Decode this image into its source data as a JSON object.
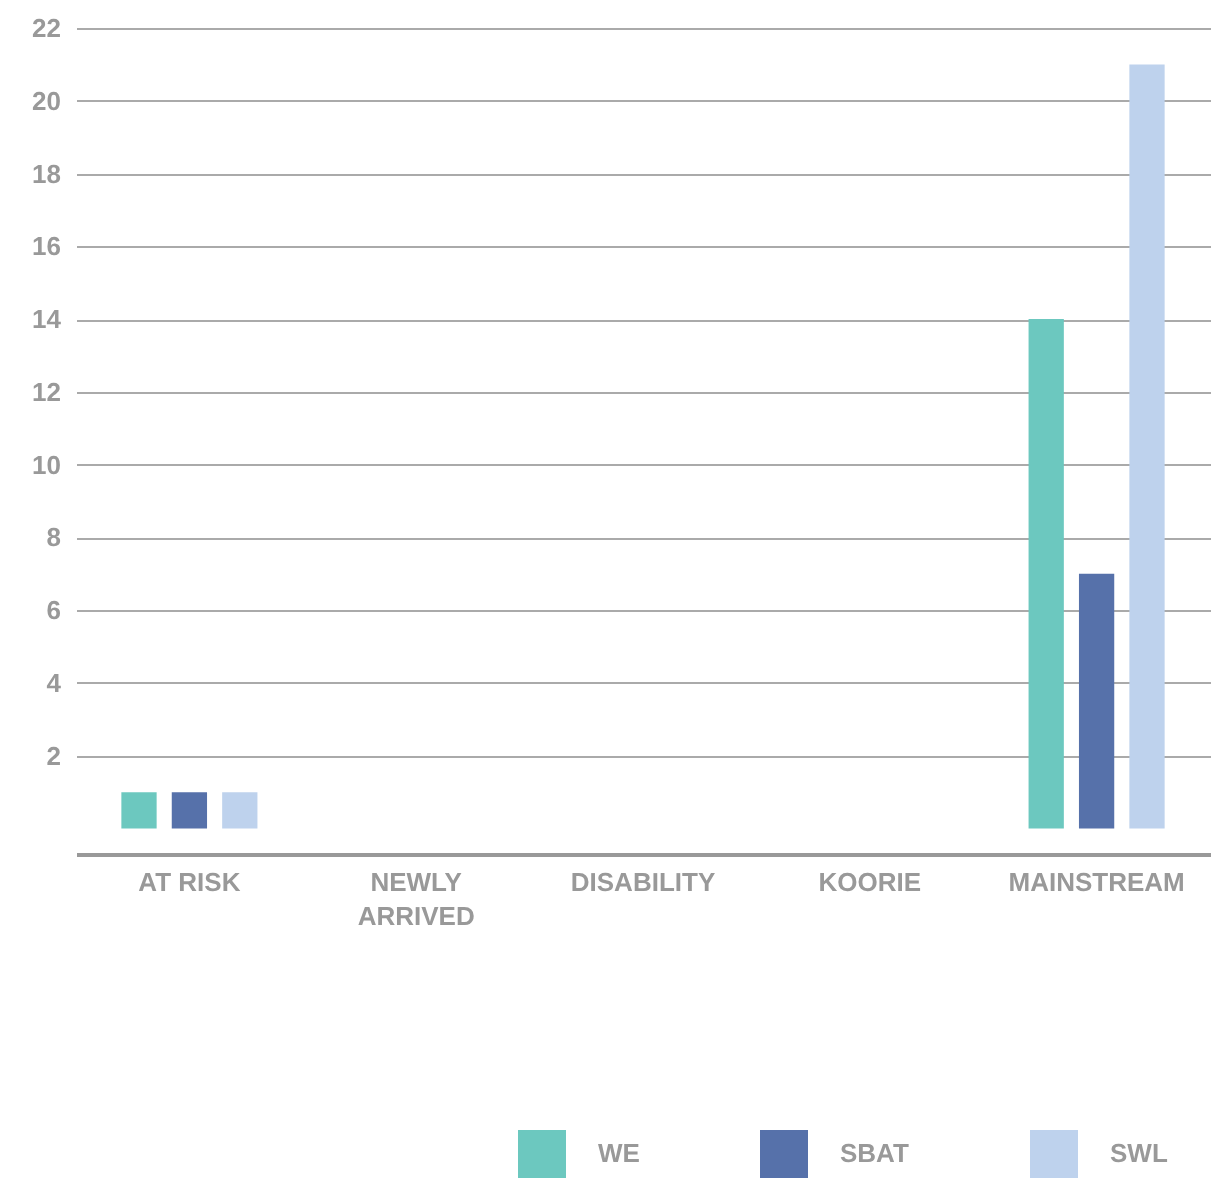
{
  "chart_data": {
    "type": "bar",
    "categories": [
      "AT RISK",
      "NEWLY ARRIVED",
      "DISABILITY",
      "KOORIE",
      "MAINSTREAM"
    ],
    "series": [
      {
        "name": "WE",
        "color": "#6cc8bf",
        "values": [
          1,
          null,
          null,
          null,
          14
        ]
      },
      {
        "name": "SBAT",
        "color": "#5671aa",
        "values": [
          1,
          null,
          null,
          null,
          7
        ]
      },
      {
        "name": "SWL",
        "color": "#bed2ed",
        "values": [
          1,
          null,
          null,
          null,
          21
        ]
      }
    ],
    "ylim": [
      -0.7,
      22
    ],
    "yticks": [
      2,
      4,
      6,
      8,
      10,
      12,
      14,
      16,
      18,
      20,
      22
    ],
    "grid": "y",
    "legend": "bottom"
  }
}
